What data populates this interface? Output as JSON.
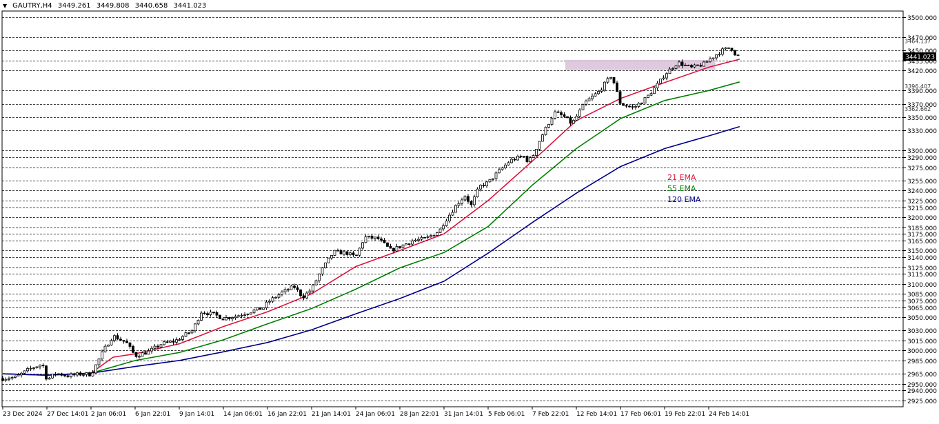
{
  "header": {
    "symbol_tf": "GAUTRY,H4",
    "open": "3449.261",
    "high": "3449.808",
    "low": "3440.658",
    "close": "3441.023"
  },
  "colors": {
    "ema21": "#dc143c",
    "ema55": "#008000",
    "ema120": "#00008b",
    "zone": "#d8bfd8",
    "candle": "#000000",
    "grid": "#000000",
    "price_label_bg": "#000000",
    "price_label_fg": "#ffffff"
  },
  "chart_data": {
    "type": "line",
    "title": "",
    "xlabel": "",
    "ylabel": "",
    "ylim": [
      2915,
      3510
    ],
    "grid": true,
    "x_tick_labels": [
      "23 Dec 2024",
      "27 Dec 14:01",
      "2 Jan 06:01",
      "6 Jan 22:01",
      "9 Jan 14:01",
      "14 Jan 06:01",
      "16 Jan 22:01",
      "21 Jan 14:01",
      "24 Jan 06:01",
      "28 Jan 22:01",
      "31 Jan 14:01",
      "5 Feb 06:01",
      "7 Feb 22:01",
      "12 Feb 14:01",
      "17 Feb 06:01",
      "19 Feb 22:01",
      "24 Feb 14:01"
    ],
    "y_levels": [
      3500,
      3470,
      3450,
      3435,
      3420,
      3390,
      3370,
      3350,
      3330,
      3300,
      3290,
      3275,
      3255,
      3240,
      3225,
      3215,
      3200,
      3185,
      3175,
      3165,
      3150,
      3140,
      3125,
      3115,
      3100,
      3085,
      3075,
      3065,
      3050,
      3030,
      3015,
      3000,
      2985,
      2965,
      2950,
      2940,
      2925
    ],
    "y_level_labels": [
      "3500.000",
      "3470.000",
      "3450.000",
      "3435.000",
      "3420.000",
      "3390.000",
      "3370.000",
      "3350.000",
      "3330.000",
      "3300.000",
      "3290.000",
      "3275.000",
      "3255.000",
      "3240.000",
      "3225.000",
      "3215.000",
      "3200.000",
      "3185.000",
      "3175.000",
      "3165.000",
      "3150.000",
      "3140.000",
      "3125.000",
      "3115.000",
      "3100.000",
      "3085.000",
      "3075.000",
      "3065.000",
      "3050.000",
      "3030.000",
      "3015.000",
      "3000.000",
      "2985.000",
      "2965.000",
      "2950.000",
      "2940.000",
      "2925.000"
    ],
    "extra_price_labels": [
      {
        "price": 3464.137,
        "text": "3464.137"
      },
      {
        "price": 3396.407,
        "text": "3396.407"
      },
      {
        "price": 3362.662,
        "text": "3362.662"
      }
    ],
    "current_price": 3441.023,
    "zone": {
      "from_date_index": 12.75,
      "to_date_index": 16.15,
      "low": 3421,
      "high": 3436
    },
    "close_path": [
      [
        0,
        2958
      ],
      [
        0.3,
        2960
      ],
      [
        0.6,
        2972
      ],
      [
        0.9,
        2980
      ],
      [
        1.0,
        2956
      ],
      [
        1.2,
        2966
      ],
      [
        1.5,
        2962
      ],
      [
        1.8,
        2965
      ],
      [
        2.0,
        2964
      ],
      [
        2.3,
        3002
      ],
      [
        2.5,
        3022
      ],
      [
        2.8,
        3012
      ],
      [
        3.0,
        2992
      ],
      [
        3.3,
        2998
      ],
      [
        3.6,
        3010
      ],
      [
        3.9,
        3014
      ],
      [
        4.0,
        3018
      ],
      [
        4.3,
        3030
      ],
      [
        4.5,
        3058
      ],
      [
        4.8,
        3054
      ],
      [
        5.0,
        3048
      ],
      [
        5.3,
        3052
      ],
      [
        5.6,
        3058
      ],
      [
        5.9,
        3064
      ],
      [
        6.0,
        3072
      ],
      [
        6.3,
        3086
      ],
      [
        6.6,
        3096
      ],
      [
        6.8,
        3080
      ],
      [
        7.0,
        3092
      ],
      [
        7.2,
        3118
      ],
      [
        7.5,
        3148
      ],
      [
        7.8,
        3146
      ],
      [
        8.0,
        3140
      ],
      [
        8.2,
        3170
      ],
      [
        8.5,
        3168
      ],
      [
        8.8,
        3150
      ],
      [
        9.0,
        3156
      ],
      [
        9.3,
        3165
      ],
      [
        9.6,
        3168
      ],
      [
        9.9,
        3180
      ],
      [
        10.0,
        3192
      ],
      [
        10.3,
        3220
      ],
      [
        10.5,
        3234
      ],
      [
        10.6,
        3215
      ],
      [
        10.8,
        3246
      ],
      [
        11.0,
        3252
      ],
      [
        11.2,
        3266
      ],
      [
        11.5,
        3285
      ],
      [
        11.8,
        3292
      ],
      [
        11.9,
        3284
      ],
      [
        12.0,
        3290
      ],
      [
        12.2,
        3320
      ],
      [
        12.5,
        3357
      ],
      [
        12.7,
        3352
      ],
      [
        12.9,
        3340
      ],
      [
        13.2,
        3372
      ],
      [
        13.5,
        3388
      ],
      [
        13.8,
        3413
      ],
      [
        14.0,
        3370
      ],
      [
        14.3,
        3364
      ],
      [
        14.6,
        3380
      ],
      [
        14.9,
        3404
      ],
      [
        15.0,
        3414
      ],
      [
        15.3,
        3432
      ],
      [
        15.6,
        3424
      ],
      [
        15.9,
        3430
      ],
      [
        16.0,
        3436
      ],
      [
        16.3,
        3450
      ],
      [
        16.5,
        3455
      ],
      [
        16.6,
        3445
      ],
      [
        16.7,
        3441
      ]
    ],
    "series": [
      {
        "name": "21 EMA",
        "values": [
          [
            0,
            2965
          ],
          [
            1,
            2963
          ],
          [
            2,
            2966
          ],
          [
            2.5,
            2990
          ],
          [
            3,
            2995
          ],
          [
            4,
            3010
          ],
          [
            5,
            3036
          ],
          [
            6,
            3058
          ],
          [
            7,
            3085
          ],
          [
            8,
            3126
          ],
          [
            9,
            3150
          ],
          [
            10,
            3175
          ],
          [
            11,
            3225
          ],
          [
            12,
            3284
          ],
          [
            13,
            3345
          ],
          [
            14,
            3378
          ],
          [
            15,
            3402
          ],
          [
            16,
            3425
          ],
          [
            16.7,
            3437
          ]
        ]
      },
      {
        "name": "55 EMA",
        "values": [
          [
            0,
            2965
          ],
          [
            1,
            2963
          ],
          [
            2,
            2966
          ],
          [
            3,
            2985
          ],
          [
            4,
            2997
          ],
          [
            5,
            3016
          ],
          [
            6,
            3040
          ],
          [
            7,
            3063
          ],
          [
            8,
            3092
          ],
          [
            9,
            3124
          ],
          [
            10,
            3147
          ],
          [
            11,
            3186
          ],
          [
            12,
            3248
          ],
          [
            13,
            3303
          ],
          [
            14,
            3348
          ],
          [
            15,
            3375
          ],
          [
            16,
            3390
          ],
          [
            16.7,
            3403
          ]
        ]
      },
      {
        "name": "120 EMA",
        "values": [
          [
            0,
            2965
          ],
          [
            1,
            2963
          ],
          [
            2,
            2966
          ],
          [
            3,
            2976
          ],
          [
            4,
            2985
          ],
          [
            5,
            2998
          ],
          [
            6,
            3012
          ],
          [
            7,
            3031
          ],
          [
            8,
            3055
          ],
          [
            9,
            3078
          ],
          [
            10,
            3104
          ],
          [
            11,
            3146
          ],
          [
            12,
            3192
          ],
          [
            13,
            3236
          ],
          [
            14,
            3276
          ],
          [
            15,
            3303
          ],
          [
            16,
            3322
          ],
          [
            16.7,
            3336
          ]
        ]
      }
    ],
    "legend": {
      "position": "center-right",
      "entries": [
        "21 EMA",
        "55 EMA",
        "120 EMA"
      ]
    }
  }
}
